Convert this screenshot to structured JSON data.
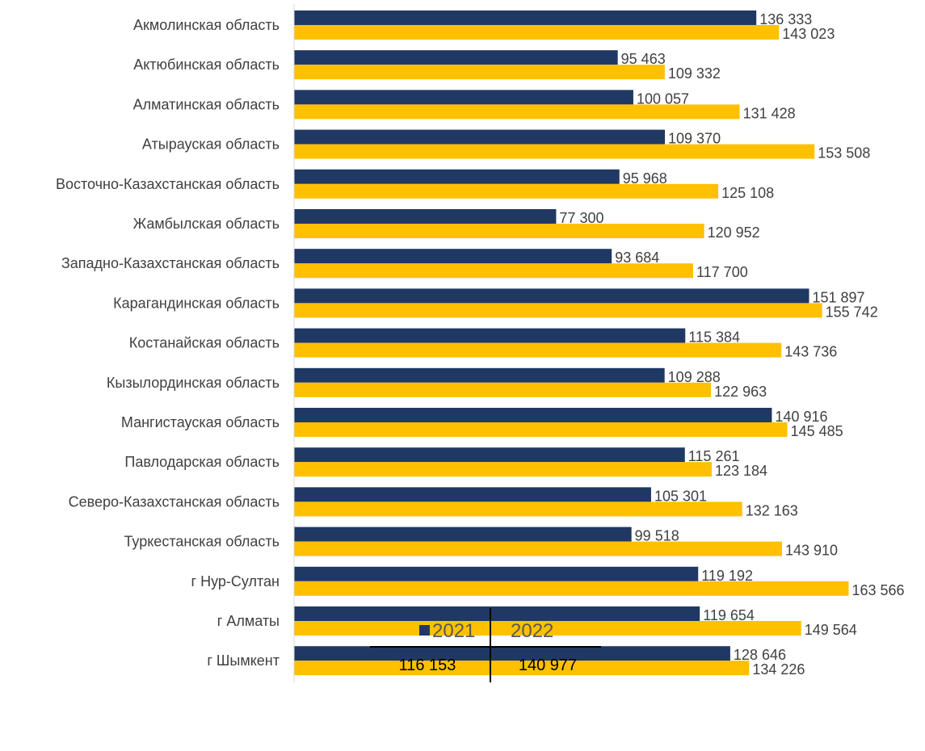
{
  "chart_data": {
    "type": "bar",
    "orientation": "horizontal",
    "categories": [
      "Акмолинская область",
      "Актюбинская область",
      "Алматинская область",
      "Атырауская область",
      "Восточно-Казахстанская область",
      "Жамбылская область",
      "Западно-Казахстанская область",
      "Карагандинская область",
      "Костанайская область",
      "Кызылординская область",
      "Мангистауская область",
      "Павлодарская область",
      "Северо-Казахстанская область",
      "Туркестанская область",
      "г Нур-Султан",
      "г Алматы",
      "г Шымкент"
    ],
    "series": [
      {
        "name": "2021",
        "color": "#203864",
        "values": [
          136333,
          95463,
          100057,
          109370,
          95968,
          77300,
          93684,
          151897,
          115384,
          109288,
          140916,
          115261,
          105301,
          99518,
          119192,
          119654,
          128646
        ],
        "labels": [
          "136 333",
          "95 463",
          "100 057",
          "109 370",
          "95 968",
          "77 300",
          "93 684",
          "151 897",
          "115 384",
          "109 288",
          "140 916",
          "115 261",
          "105 301",
          "99 518",
          "119 192",
          "119 654",
          "128 646"
        ]
      },
      {
        "name": "2022",
        "color": "#FFC000",
        "values": [
          143023,
          109332,
          131428,
          153508,
          125108,
          120952,
          117700,
          155742,
          143736,
          122963,
          145485,
          123184,
          132163,
          143910,
          163566,
          149564,
          134226
        ],
        "labels": [
          "143 023",
          "109 332",
          "131 428",
          "153 508",
          "125 108",
          "120 952",
          "117 700",
          "155 742",
          "143 736",
          "122 963",
          "145 485",
          "123 184",
          "132 163",
          "143 910",
          "163 566",
          "149 564",
          "134 226"
        ]
      }
    ],
    "xlim": [
      0,
      170000
    ],
    "grid": false,
    "legend_position": "bottom",
    "totals": [
      "116 153",
      "140 977"
    ]
  }
}
